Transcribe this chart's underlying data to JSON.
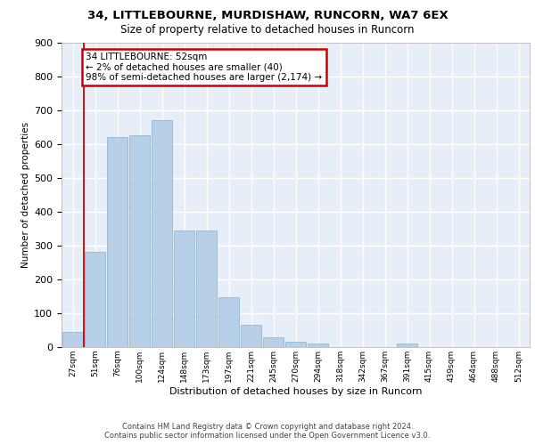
{
  "title_line1": "34, LITTLEBOURNE, MURDISHAW, RUNCORN, WA7 6EX",
  "title_line2": "Size of property relative to detached houses in Runcorn",
  "xlabel": "Distribution of detached houses by size in Runcorn",
  "ylabel": "Number of detached properties",
  "footer_line1": "Contains HM Land Registry data © Crown copyright and database right 2024.",
  "footer_line2": "Contains public sector information licensed under the Open Government Licence v3.0.",
  "annotation_line1": "34 LITTLEBOURNE: 52sqm",
  "annotation_line2": "← 2% of detached houses are smaller (40)",
  "annotation_line3": "98% of semi-detached houses are larger (2,174) →",
  "bar_labels": [
    "27sqm",
    "51sqm",
    "76sqm",
    "100sqm",
    "124sqm",
    "148sqm",
    "173sqm",
    "197sqm",
    "221sqm",
    "245sqm",
    "270sqm",
    "294sqm",
    "318sqm",
    "342sqm",
    "367sqm",
    "391sqm",
    "415sqm",
    "439sqm",
    "464sqm",
    "488sqm",
    "512sqm"
  ],
  "bar_values": [
    45,
    280,
    620,
    625,
    670,
    345,
    345,
    148,
    65,
    30,
    15,
    10,
    0,
    0,
    0,
    10,
    0,
    0,
    0,
    0,
    0
  ],
  "bar_color": "#b8cfe8",
  "bar_edge_color": "#8aaecc",
  "background_color": "#e8eef8",
  "grid_color": "#ffffff",
  "ylim": [
    0,
    900
  ],
  "ytick_step": 100,
  "property_line_x": 1,
  "property_line_color": "#cc0000",
  "annotation_border_color": "#cc0000",
  "annotation_facecolor": "#ffffff"
}
